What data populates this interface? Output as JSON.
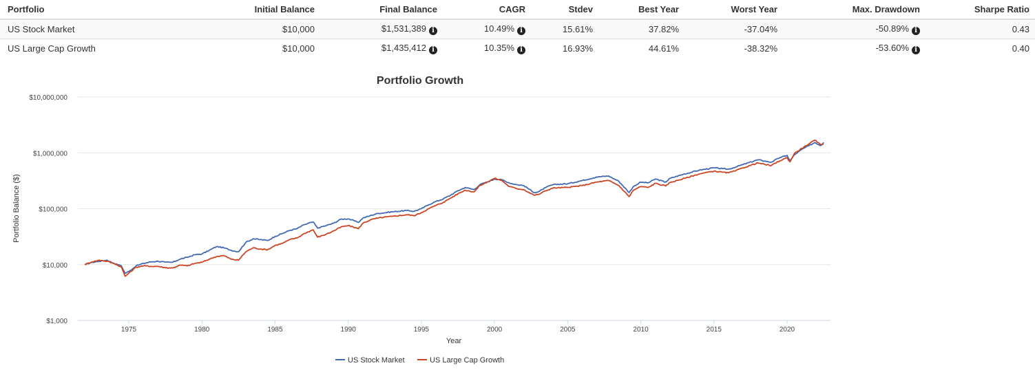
{
  "table": {
    "headers": [
      "Portfolio",
      "Initial Balance",
      "Final Balance",
      "CAGR",
      "Stdev",
      "Best Year",
      "Worst Year",
      "Max. Drawdown",
      "Sharpe Ratio"
    ],
    "rows": [
      {
        "portfolio": "US Stock Market",
        "initial_balance": "$10,000",
        "final_balance": "$1,531,389",
        "cagr": "10.49%",
        "stdev": "15.61%",
        "best_year": "37.82%",
        "worst_year": "-37.04%",
        "max_drawdown": "-50.89%",
        "sharpe_ratio": "0.43"
      },
      {
        "portfolio": "US Large Cap Growth",
        "initial_balance": "$10,000",
        "final_balance": "$1,435,412",
        "cagr": "10.35%",
        "stdev": "16.93%",
        "best_year": "44.61%",
        "worst_year": "-38.32%",
        "max_drawdown": "-53.60%",
        "sharpe_ratio": "0.40"
      }
    ],
    "info_icon": "info-circle-icon"
  },
  "chart_data": {
    "type": "line",
    "title": "Portfolio Growth",
    "xlabel": "Year",
    "ylabel": "Portfolio Balance ($)",
    "yscale": "log",
    "ylim": [
      1000,
      10000000
    ],
    "xlim": [
      1971.6,
      2023.0
    ],
    "yticks": [
      1000,
      10000,
      100000,
      1000000,
      10000000
    ],
    "ytick_labels": [
      "$1,000",
      "$10,000",
      "$100,000",
      "$1,000,000",
      "$10,000,000"
    ],
    "xticks": [
      1975,
      1980,
      1985,
      1990,
      1995,
      2000,
      2005,
      2010,
      2015,
      2020
    ],
    "xtick_labels": [
      "1975",
      "1980",
      "1985",
      "1990",
      "1995",
      "2000",
      "2005",
      "2010",
      "2015",
      "2020"
    ],
    "grid": true,
    "legend": "bottom-center",
    "series": [
      {
        "name": "US Stock Market",
        "color": "#4169b4",
        "points": [
          [
            1972.0,
            10000
          ],
          [
            1972.5,
            11000
          ],
          [
            1973.0,
            11500
          ],
          [
            1973.5,
            12000
          ],
          [
            1974.0,
            10500
          ],
          [
            1974.5,
            9500
          ],
          [
            1974.75,
            7000
          ],
          [
            1975.0,
            7500
          ],
          [
            1975.5,
            9500
          ],
          [
            1976.0,
            10500
          ],
          [
            1976.5,
            11200
          ],
          [
            1977.0,
            11500
          ],
          [
            1977.5,
            11000
          ],
          [
            1978.0,
            11000
          ],
          [
            1978.5,
            12500
          ],
          [
            1979.0,
            13500
          ],
          [
            1979.5,
            15000
          ],
          [
            1980.0,
            15500
          ],
          [
            1980.5,
            18000
          ],
          [
            1981.0,
            21000
          ],
          [
            1981.5,
            20000
          ],
          [
            1982.0,
            18000
          ],
          [
            1982.5,
            17000
          ],
          [
            1983.0,
            25000
          ],
          [
            1983.5,
            29000
          ],
          [
            1984.0,
            28000
          ],
          [
            1984.5,
            27000
          ],
          [
            1985.0,
            32000
          ],
          [
            1985.5,
            36000
          ],
          [
            1986.0,
            41000
          ],
          [
            1986.5,
            44000
          ],
          [
            1987.0,
            52000
          ],
          [
            1987.6,
            58000
          ],
          [
            1987.9,
            45000
          ],
          [
            1988.5,
            50000
          ],
          [
            1989.0,
            55000
          ],
          [
            1989.5,
            65000
          ],
          [
            1990.0,
            66000
          ],
          [
            1990.7,
            57000
          ],
          [
            1991.0,
            68000
          ],
          [
            1991.5,
            75000
          ],
          [
            1992.0,
            82000
          ],
          [
            1993.0,
            88000
          ],
          [
            1994.0,
            93000
          ],
          [
            1994.5,
            90000
          ],
          [
            1995.0,
            100000
          ],
          [
            1995.5,
            118000
          ],
          [
            1996.0,
            135000
          ],
          [
            1996.5,
            150000
          ],
          [
            1997.0,
            175000
          ],
          [
            1997.5,
            210000
          ],
          [
            1998.0,
            240000
          ],
          [
            1998.6,
            220000
          ],
          [
            1999.0,
            270000
          ],
          [
            1999.5,
            300000
          ],
          [
            2000.0,
            340000
          ],
          [
            2000.5,
            330000
          ],
          [
            2001.0,
            290000
          ],
          [
            2001.5,
            270000
          ],
          [
            2002.0,
            260000
          ],
          [
            2002.7,
            195000
          ],
          [
            2003.0,
            200000
          ],
          [
            2003.5,
            240000
          ],
          [
            2004.0,
            270000
          ],
          [
            2005.0,
            280000
          ],
          [
            2006.0,
            320000
          ],
          [
            2007.0,
            370000
          ],
          [
            2007.8,
            385000
          ],
          [
            2008.5,
            310000
          ],
          [
            2009.2,
            195000
          ],
          [
            2009.5,
            250000
          ],
          [
            2010.0,
            300000
          ],
          [
            2010.5,
            290000
          ],
          [
            2011.0,
            340000
          ],
          [
            2011.7,
            300000
          ],
          [
            2012.0,
            350000
          ],
          [
            2013.0,
            420000
          ],
          [
            2014.0,
            490000
          ],
          [
            2015.0,
            540000
          ],
          [
            2015.6,
            520000
          ],
          [
            2016.0,
            510000
          ],
          [
            2016.5,
            560000
          ],
          [
            2017.0,
            620000
          ],
          [
            2018.0,
            750000
          ],
          [
            2018.9,
            680000
          ],
          [
            2019.5,
            820000
          ],
          [
            2020.0,
            900000
          ],
          [
            2020.2,
            720000
          ],
          [
            2020.5,
            920000
          ],
          [
            2021.0,
            1150000
          ],
          [
            2021.5,
            1350000
          ],
          [
            2021.9,
            1530000
          ],
          [
            2022.3,
            1350000
          ],
          [
            2022.5,
            1531389
          ]
        ]
      },
      {
        "name": "US Large Cap Growth",
        "color": "#cc4422",
        "points": [
          [
            1972.0,
            10000
          ],
          [
            1972.5,
            11200
          ],
          [
            1973.0,
            12000
          ],
          [
            1973.5,
            11500
          ],
          [
            1974.0,
            10500
          ],
          [
            1974.5,
            9000
          ],
          [
            1974.75,
            6200
          ],
          [
            1975.0,
            7000
          ],
          [
            1975.5,
            9000
          ],
          [
            1976.0,
            9500
          ],
          [
            1976.5,
            9300
          ],
          [
            1977.0,
            9300
          ],
          [
            1977.5,
            8800
          ],
          [
            1978.0,
            8700
          ],
          [
            1978.5,
            9800
          ],
          [
            1979.0,
            9500
          ],
          [
            1979.5,
            10500
          ],
          [
            1980.0,
            11000
          ],
          [
            1980.5,
            12500
          ],
          [
            1981.0,
            14000
          ],
          [
            1981.5,
            14500
          ],
          [
            1982.0,
            12500
          ],
          [
            1982.5,
            12000
          ],
          [
            1983.0,
            17000
          ],
          [
            1983.5,
            20000
          ],
          [
            1984.0,
            19000
          ],
          [
            1984.5,
            18500
          ],
          [
            1985.0,
            22000
          ],
          [
            1985.5,
            24000
          ],
          [
            1986.0,
            28000
          ],
          [
            1986.5,
            30000
          ],
          [
            1987.0,
            36000
          ],
          [
            1987.6,
            42000
          ],
          [
            1987.9,
            31000
          ],
          [
            1988.5,
            35000
          ],
          [
            1989.0,
            40000
          ],
          [
            1989.5,
            47000
          ],
          [
            1990.0,
            50000
          ],
          [
            1990.7,
            44000
          ],
          [
            1991.0,
            55000
          ],
          [
            1991.5,
            63000
          ],
          [
            1992.0,
            68000
          ],
          [
            1993.0,
            73000
          ],
          [
            1994.0,
            78000
          ],
          [
            1994.5,
            75000
          ],
          [
            1995.0,
            85000
          ],
          [
            1995.5,
            100000
          ],
          [
            1996.0,
            115000
          ],
          [
            1996.5,
            130000
          ],
          [
            1997.0,
            155000
          ],
          [
            1997.5,
            185000
          ],
          [
            1998.0,
            215000
          ],
          [
            1998.6,
            200000
          ],
          [
            1999.0,
            260000
          ],
          [
            1999.5,
            300000
          ],
          [
            2000.0,
            350000
          ],
          [
            2000.5,
            320000
          ],
          [
            2001.0,
            250000
          ],
          [
            2001.5,
            230000
          ],
          [
            2002.0,
            220000
          ],
          [
            2002.7,
            175000
          ],
          [
            2003.0,
            180000
          ],
          [
            2003.5,
            210000
          ],
          [
            2004.0,
            235000
          ],
          [
            2005.0,
            240000
          ],
          [
            2006.0,
            260000
          ],
          [
            2007.0,
            300000
          ],
          [
            2007.8,
            320000
          ],
          [
            2008.5,
            260000
          ],
          [
            2009.2,
            165000
          ],
          [
            2009.5,
            215000
          ],
          [
            2010.0,
            250000
          ],
          [
            2010.5,
            240000
          ],
          [
            2011.0,
            285000
          ],
          [
            2011.7,
            255000
          ],
          [
            2012.0,
            295000
          ],
          [
            2013.0,
            350000
          ],
          [
            2014.0,
            420000
          ],
          [
            2015.0,
            470000
          ],
          [
            2015.6,
            450000
          ],
          [
            2016.0,
            440000
          ],
          [
            2016.5,
            480000
          ],
          [
            2017.0,
            540000
          ],
          [
            2018.0,
            660000
          ],
          [
            2018.9,
            590000
          ],
          [
            2019.5,
            720000
          ],
          [
            2020.0,
            820000
          ],
          [
            2020.2,
            690000
          ],
          [
            2020.5,
            980000
          ],
          [
            2021.0,
            1200000
          ],
          [
            2021.5,
            1450000
          ],
          [
            2021.9,
            1680000
          ],
          [
            2022.3,
            1400000
          ],
          [
            2022.5,
            1435412
          ]
        ]
      }
    ]
  }
}
